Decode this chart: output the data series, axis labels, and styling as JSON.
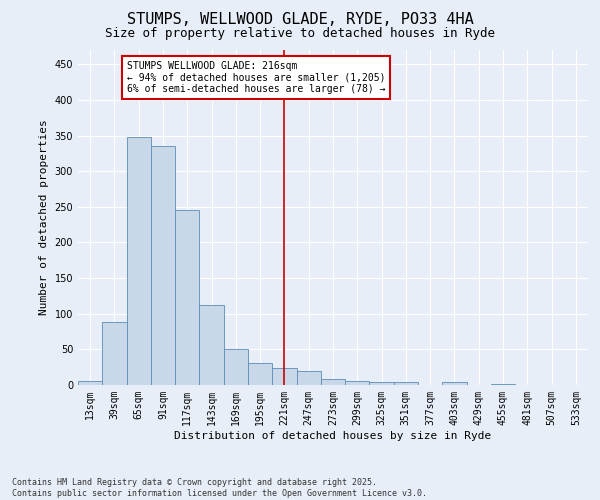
{
  "title": "STUMPS, WELLWOOD GLADE, RYDE, PO33 4HA",
  "subtitle": "Size of property relative to detached houses in Ryde",
  "xlabel": "Distribution of detached houses by size in Ryde",
  "ylabel": "Number of detached properties",
  "footer_line1": "Contains HM Land Registry data © Crown copyright and database right 2025.",
  "footer_line2": "Contains public sector information licensed under the Open Government Licence v3.0.",
  "categories": [
    "13sqm",
    "39sqm",
    "65sqm",
    "91sqm",
    "117sqm",
    "143sqm",
    "169sqm",
    "195sqm",
    "221sqm",
    "247sqm",
    "273sqm",
    "299sqm",
    "325sqm",
    "351sqm",
    "377sqm",
    "403sqm",
    "429sqm",
    "455sqm",
    "481sqm",
    "507sqm",
    "533sqm"
  ],
  "values": [
    5,
    88,
    348,
    335,
    245,
    112,
    50,
    31,
    24,
    19,
    9,
    5,
    4,
    4,
    0,
    4,
    0,
    1,
    0,
    0,
    0
  ],
  "bar_color": "#c8d8e8",
  "bar_edge_color": "#5b8db8",
  "vline_x": 8,
  "vline_color": "#cc0000",
  "annotation_title": "STUMPS WELLWOOD GLADE: 216sqm",
  "annotation_line1": "← 94% of detached houses are smaller (1,205)",
  "annotation_line2": "6% of semi-detached houses are larger (78) →",
  "annotation_box_facecolor": "#ffffff",
  "annotation_box_edgecolor": "#cc0000",
  "ylim": [
    0,
    470
  ],
  "yticks": [
    0,
    50,
    100,
    150,
    200,
    250,
    300,
    350,
    400,
    450
  ],
  "bg_color": "#e8eef8",
  "plot_bg_color": "#e8eef8",
  "title_fontsize": 11,
  "subtitle_fontsize": 9,
  "footer_fontsize": 6,
  "tick_fontsize": 7,
  "label_fontsize": 8
}
